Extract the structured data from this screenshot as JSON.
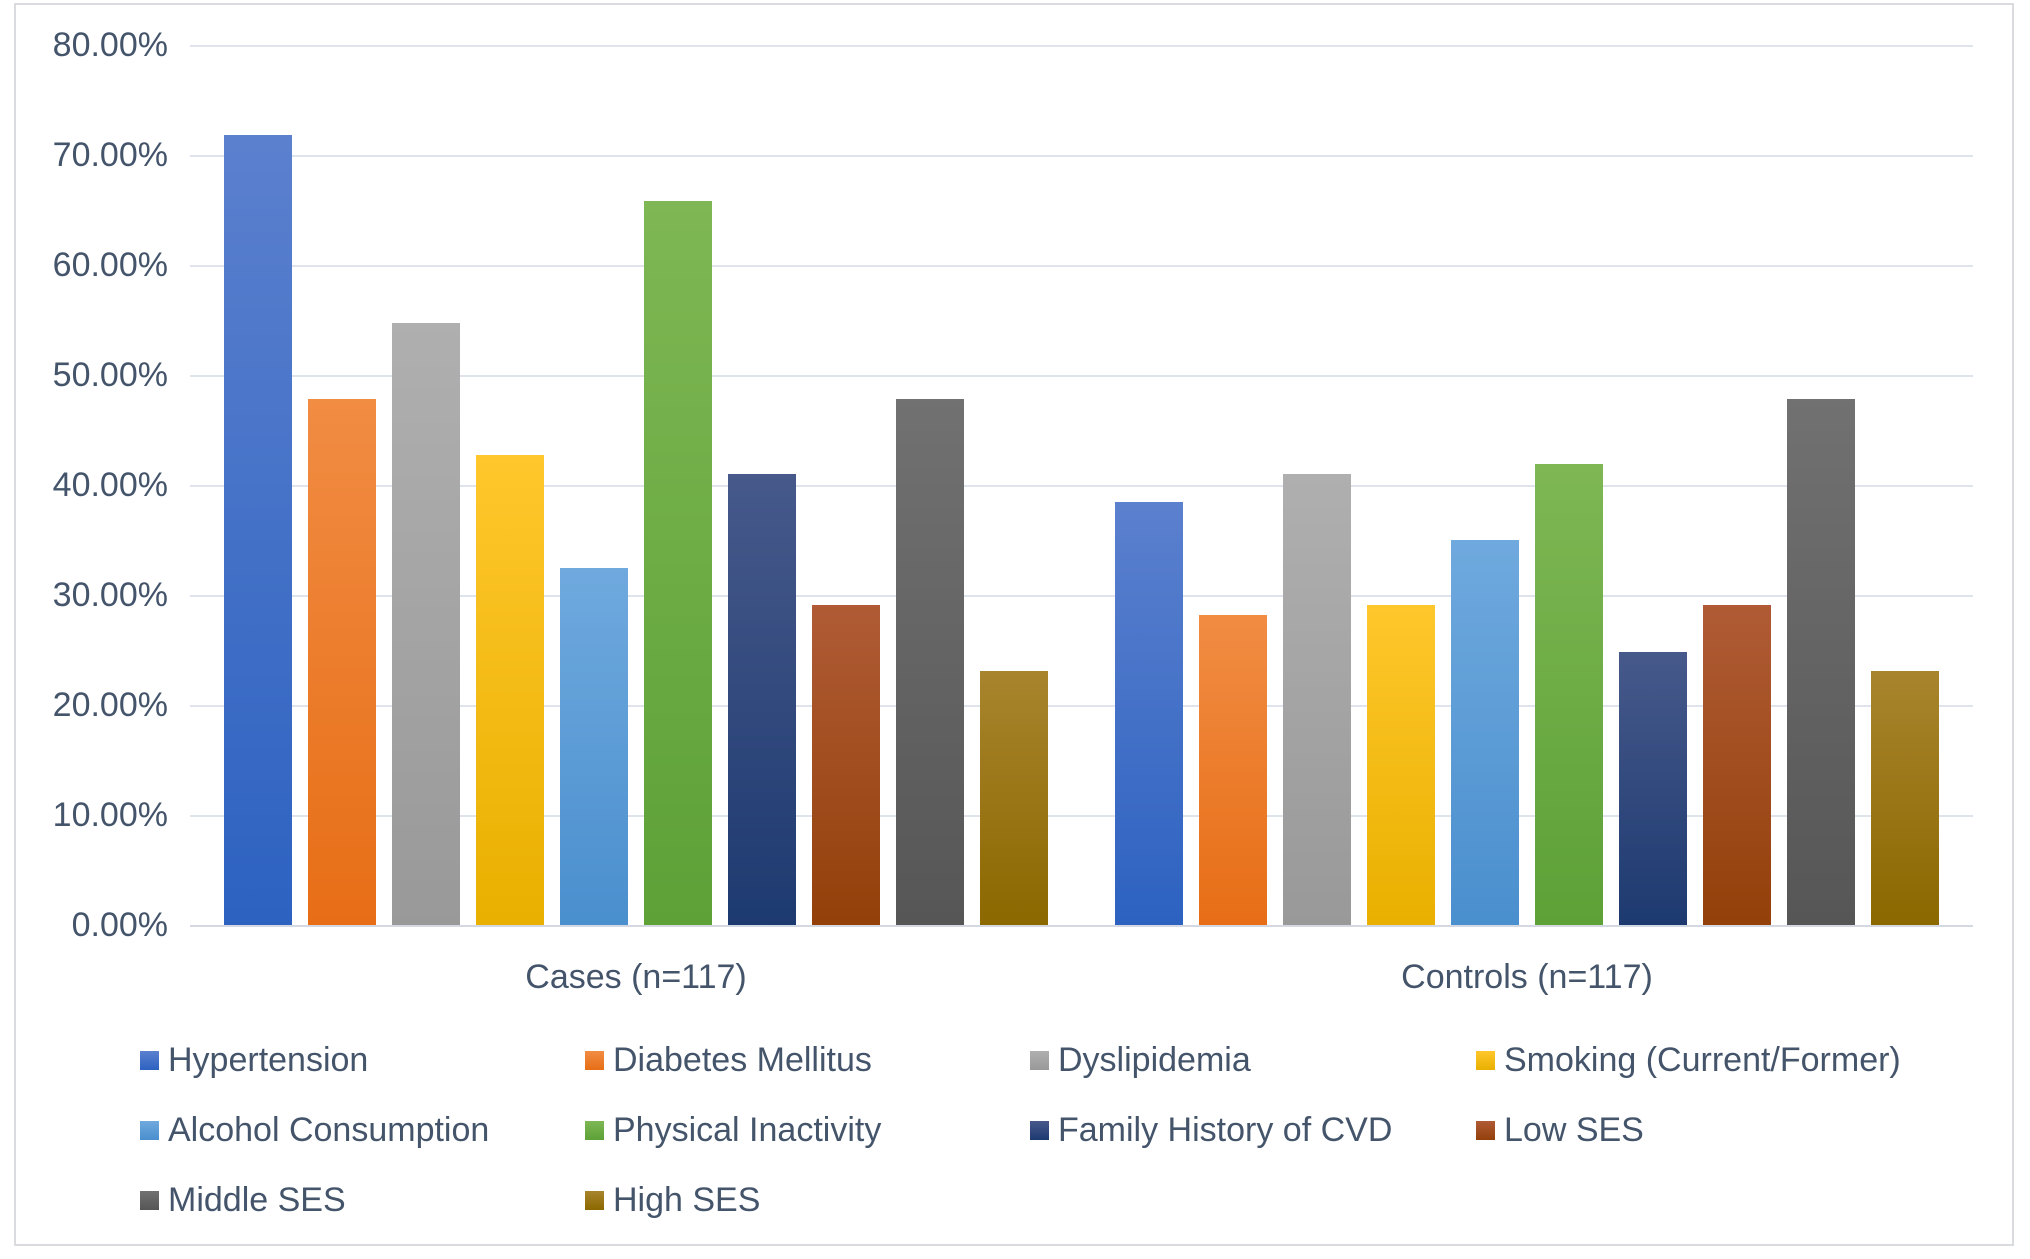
{
  "chart_data": {
    "type": "bar",
    "title": "",
    "xlabel": "",
    "ylabel": "",
    "categories": [
      "Cases (n=117)",
      "Controls (n=117)"
    ],
    "series": [
      {
        "name": "Hypertension",
        "values": [
          71.79,
          38.46
        ],
        "color_top": "#5B80CE",
        "color_bottom": "#2D62C1"
      },
      {
        "name": "Diabetes Mellitus",
        "values": [
          47.86,
          28.21
        ],
        "color_top": "#F18C43",
        "color_bottom": "#E76E16"
      },
      {
        "name": "Dyslipidemia",
        "values": [
          54.7,
          41.03
        ],
        "color_top": "#AFAFAF",
        "color_bottom": "#999999"
      },
      {
        "name": "Smoking (Current/Former)",
        "values": [
          42.74,
          29.06
        ],
        "color_top": "#FFC72B",
        "color_bottom": "#E9B000"
      },
      {
        "name": "Alcohol Consumption",
        "values": [
          32.48,
          35.04
        ],
        "color_top": "#6FA9DE",
        "color_bottom": "#4A8FCE"
      },
      {
        "name": "Physical Inactivity",
        "values": [
          65.81,
          41.88
        ],
        "color_top": "#7EB754",
        "color_bottom": "#5DA137"
      },
      {
        "name": "Family History of CVD",
        "values": [
          41.03,
          24.79
        ],
        "color_top": "#47598B",
        "color_bottom": "#1D3A70"
      },
      {
        "name": "Low SES",
        "values": [
          29.06,
          29.06
        ],
        "color_top": "#B05B35",
        "color_bottom": "#93400A"
      },
      {
        "name": "Middle SES",
        "values": [
          47.86,
          47.86
        ],
        "color_top": "#717171",
        "color_bottom": "#565656"
      },
      {
        "name": "High SES",
        "values": [
          23.08,
          23.08
        ],
        "color_top": "#A8842D",
        "color_bottom": "#8C6800"
      }
    ],
    "y_axis": {
      "min": 0,
      "max": 80,
      "step": 10,
      "tick_labels": [
        "0.00%",
        "10.00%",
        "20.00%",
        "30.00%",
        "40.00%",
        "50.00%",
        "60.00%",
        "70.00%",
        "80.00%"
      ]
    },
    "grid": true,
    "legend_position": "bottom",
    "legend_columns": 4
  },
  "style": {
    "text_color": "#44546A",
    "gridline_color": "#DFE3EC",
    "axis_line_color": "#D3D8E2",
    "frame_border_color": "#D9DBDF",
    "background_color": "#FFFFFF"
  }
}
